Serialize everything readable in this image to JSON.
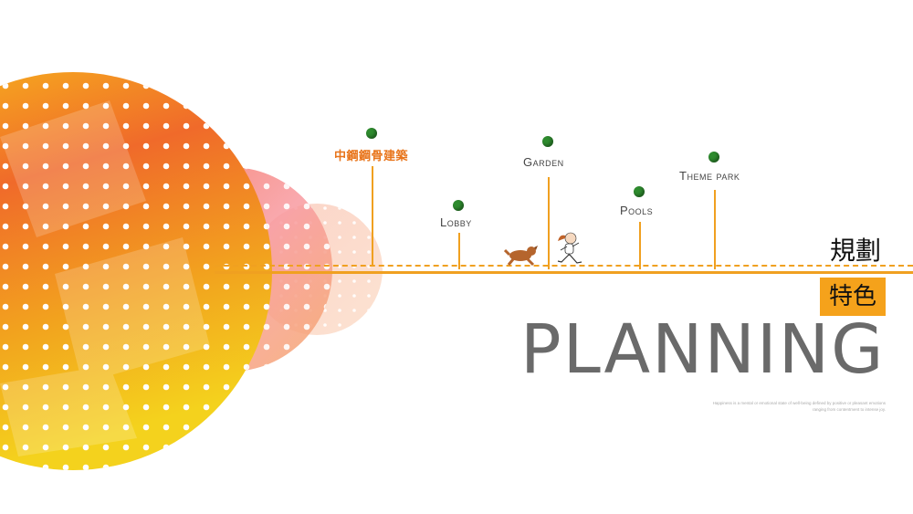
{
  "markers": [
    {
      "label": "中鋼鋼骨建築",
      "accent": true
    },
    {
      "label": "Lobby",
      "accent": false
    },
    {
      "label": "Garden",
      "accent": false
    },
    {
      "label": "Pools",
      "accent": false
    },
    {
      "label": "Theme park",
      "accent": false
    }
  ],
  "heading": {
    "line1": "規劃",
    "line2": "特色",
    "big": "PLANNING",
    "caption": "Happiness is a mental or emotional state of well-being defined by positive or pleasant emotions ranging from contentment to intense joy."
  },
  "colors": {
    "accent": "#f5a21b",
    "timeline": "#f0a020",
    "marker_dot": "#2e8b2e",
    "accent_text": "#e8741a"
  },
  "icons": [
    "dog-illustration",
    "running-girl-illustration"
  ]
}
